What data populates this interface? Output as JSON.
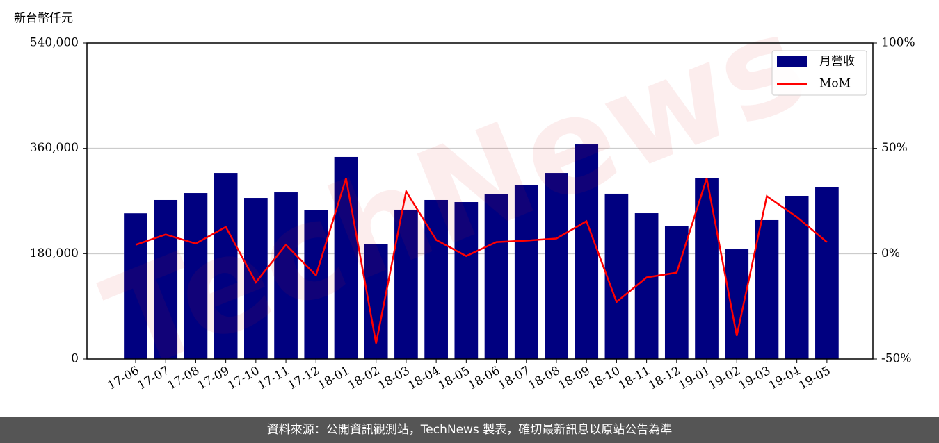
{
  "chart_data": {
    "type": "combo",
    "y_label": "新台幣仟元",
    "watermark": "TechNews",
    "categories": [
      "17-06",
      "17-07",
      "17-08",
      "17-09",
      "17-10",
      "17-11",
      "17-12",
      "18-01",
      "18-02",
      "18-03",
      "18-04",
      "18-05",
      "18-06",
      "18-07",
      "18-08",
      "18-09",
      "18-10",
      "18-11",
      "18-12",
      "19-01",
      "19-02",
      "19-03",
      "19-04",
      "19-05"
    ],
    "series": [
      {
        "name": "月營收",
        "type": "bar",
        "color": "#000080",
        "values": [
          249000,
          271800,
          283600,
          318000,
          275300,
          284800,
          254000,
          345400,
          197000,
          255200,
          271800,
          268200,
          281300,
          297900,
          318000,
          366700,
          282500,
          249200,
          226700,
          308600,
          187500,
          237400,
          278900,
          294300
        ]
      },
      {
        "name": "MoM",
        "type": "line",
        "axis": "y2",
        "color": "#ff0000",
        "values": [
          4.2,
          9.1,
          4.8,
          12.7,
          -13.6,
          4.2,
          -10.3,
          35.8,
          -42.6,
          29.6,
          6.5,
          -1.1,
          5.5,
          6.2,
          7.2,
          15.4,
          -22.9,
          -11.3,
          -9.0,
          35.8,
          -39.0,
          27.3,
          17.4,
          5.5
        ]
      }
    ],
    "ylim": [
      0,
      540000
    ],
    "yticks": [
      0,
      {
        "value": 180000,
        "label": "180,000"
      },
      {
        "value": 360000,
        "label": "360,000"
      },
      {
        "value": 540000,
        "label": "540,000"
      }
    ],
    "y2lim": [
      -50,
      100
    ],
    "y2ticks": [
      {
        "value": -50,
        "label": "-50%"
      },
      {
        "value": 0,
        "label": "0%"
      },
      {
        "value": 50,
        "label": "50%"
      },
      {
        "value": 100,
        "label": "100%"
      }
    ],
    "grid": true,
    "legend": "upper right"
  },
  "footer": "資料來源：公開資訊觀測站，TechNews 製表，確切最新訊息以原站公告為準"
}
